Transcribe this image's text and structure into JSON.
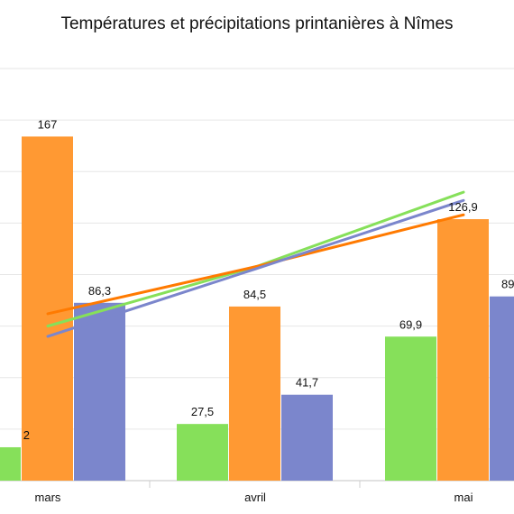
{
  "chart_data": {
    "type": "bar",
    "title": "Températures et précipitations printanières à Nîmes",
    "categories": [
      "mars",
      "avril",
      "mai"
    ],
    "ylim": [
      0,
      200
    ],
    "grid": true,
    "series": [
      {
        "values": [
          16.2,
          27.5,
          69.9
        ],
        "labels": [
          "",
          "27,5",
          "69,9"
        ],
        "color": "#86e05a"
      },
      {
        "values": [
          167,
          84.5,
          126.9
        ],
        "labels": [
          "167",
          "84,5",
          "126,9"
        ],
        "color": "#ff9933"
      },
      {
        "values": [
          86.3,
          41.7,
          89.4
        ],
        "labels": [
          "86,3",
          "41,7",
          ""
        ],
        "color": "#7b86cc"
      }
    ],
    "partial_labels": [
      {
        "text": "2"
      },
      {
        "text": "89"
      }
    ],
    "line_series": [
      {
        "values": [
          75,
          104,
          140
        ],
        "color": "#86e05a"
      },
      {
        "values": [
          81,
          104,
          129
        ],
        "color": "#ff7a00"
      },
      {
        "values": [
          70,
          103,
          136
        ],
        "color": "#7b86cc"
      }
    ]
  }
}
